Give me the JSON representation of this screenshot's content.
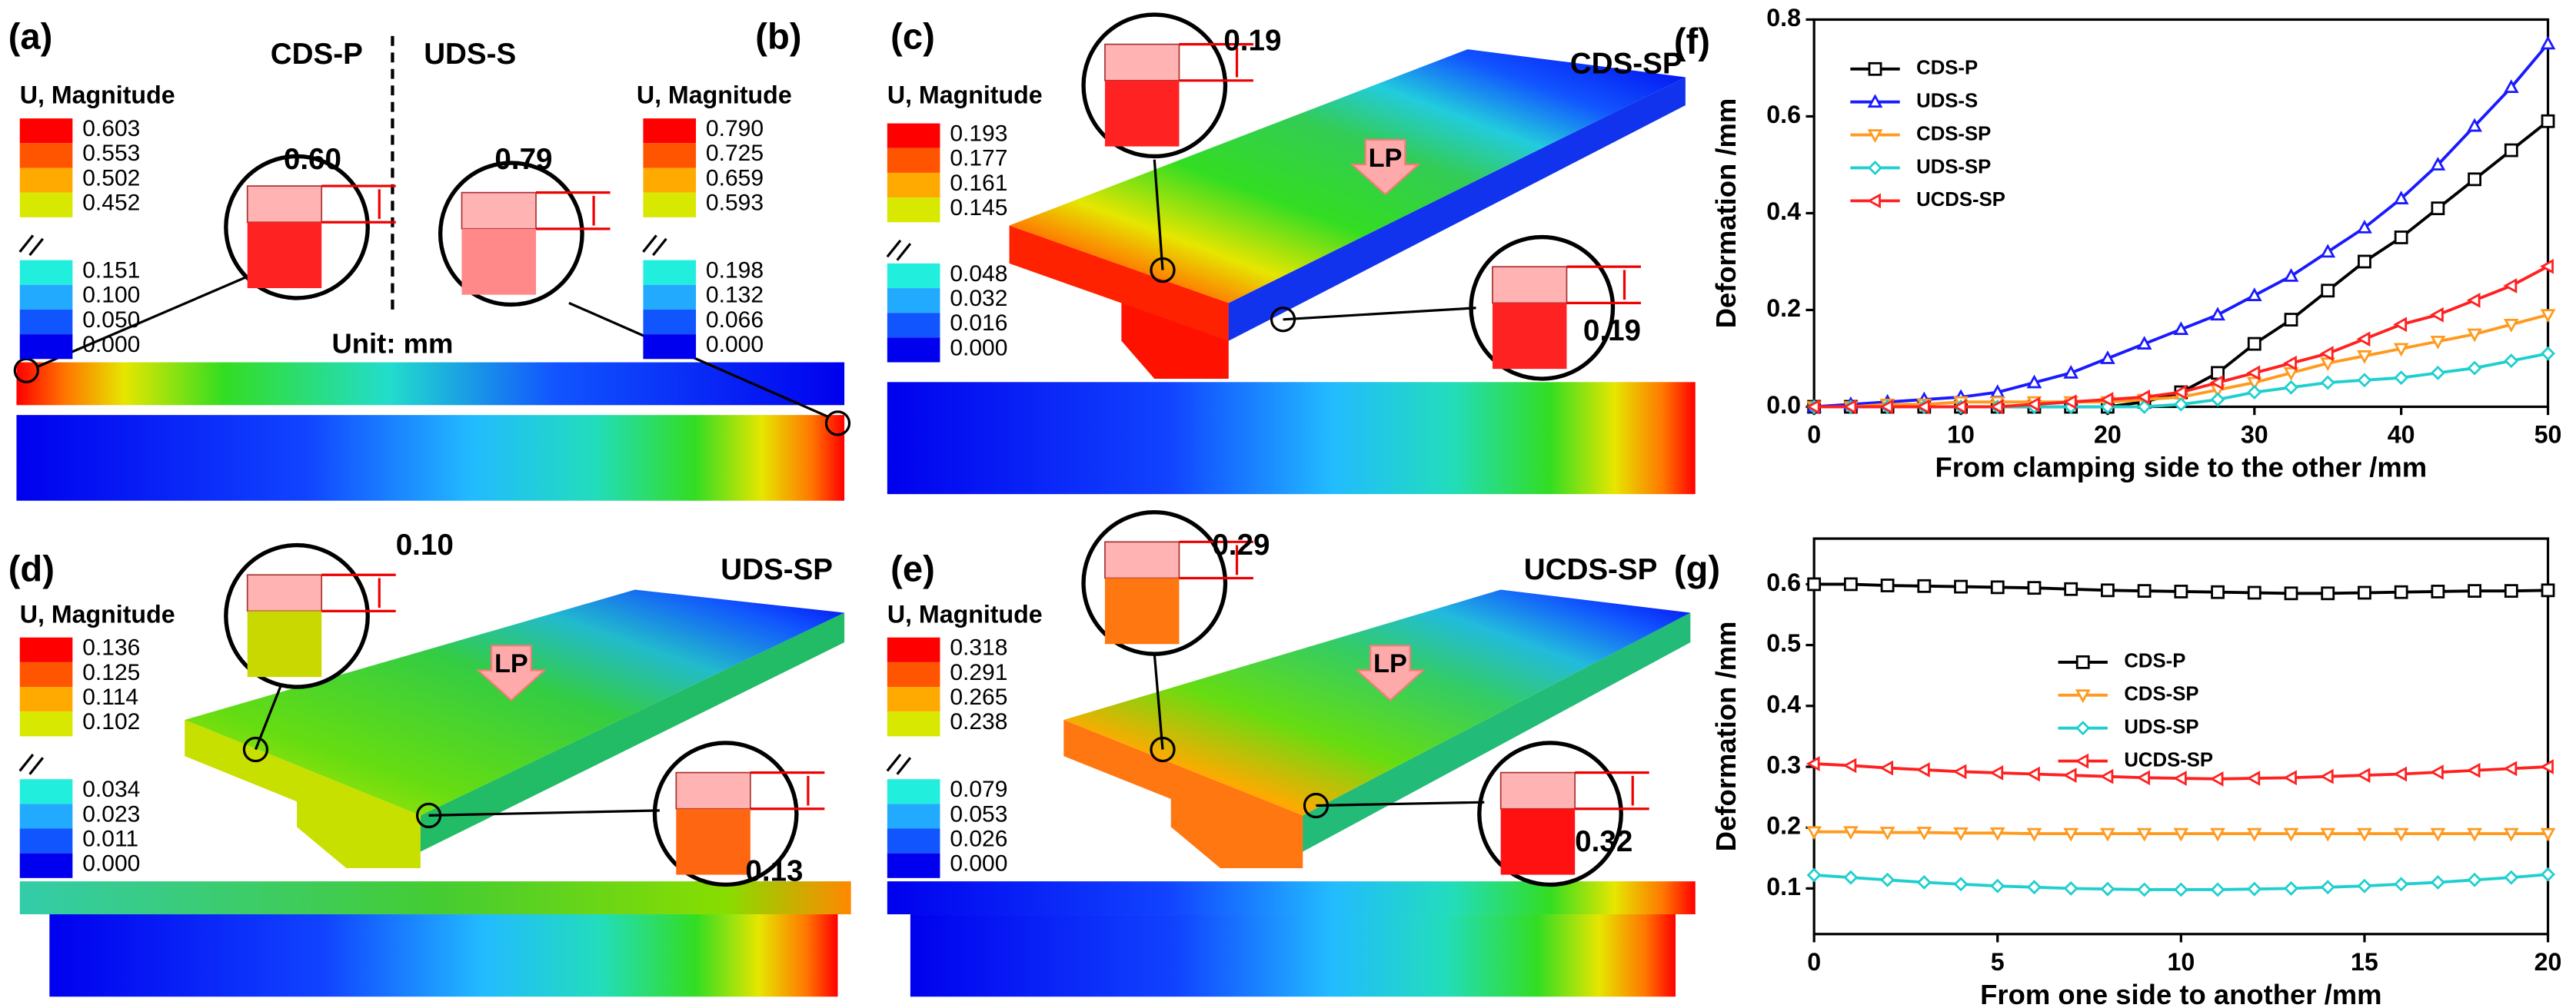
{
  "panels": [
    {
      "label": "(a)",
      "name": "CDS-P",
      "legend_title": "U, Magnitude",
      "legend_values": [
        "0.603",
        "0.553",
        "0.502",
        "0.452",
        "0.151",
        "0.100",
        "0.050",
        "0.000"
      ],
      "callouts": [
        "0.60"
      ]
    },
    {
      "label": "(b)",
      "name": "UDS-S",
      "legend_title": "U, Magnitude",
      "legend_values": [
        "0.790",
        "0.725",
        "0.659",
        "0.593",
        "0.198",
        "0.132",
        "0.066",
        "0.000"
      ],
      "callouts": [
        "0.79"
      ]
    },
    {
      "label": "(c)",
      "name": "CDS-SP",
      "legend_title": "U, Magnitude",
      "legend_values": [
        "0.193",
        "0.177",
        "0.161",
        "0.145",
        "0.048",
        "0.032",
        "0.016",
        "0.000"
      ],
      "callouts": [
        "0.19",
        "0.19"
      ],
      "load": "LP"
    },
    {
      "label": "(d)",
      "name": "UDS-SP",
      "legend_title": "U, Magnitude",
      "legend_values": [
        "0.136",
        "0.125",
        "0.114",
        "0.102",
        "0.034",
        "0.023",
        "0.011",
        "0.000"
      ],
      "callouts": [
        "0.10",
        "0.13"
      ],
      "load": "LP"
    },
    {
      "label": "(e)",
      "name": "UCDS-SP",
      "legend_title": "U, Magnitude",
      "legend_values": [
        "0.318",
        "0.291",
        "0.265",
        "0.238",
        "0.079",
        "0.053",
        "0.026",
        "0.000"
      ],
      "callouts": [
        "0.29",
        "0.32"
      ],
      "load": "LP"
    }
  ],
  "unit": "Unit: mm",
  "chart_data": [
    {
      "type": "line",
      "label": "(f)",
      "xlabel": "From clamping side to the other /mm",
      "ylabel": "Deformation /mm",
      "x": [
        0,
        2.5,
        5,
        7.5,
        10,
        12.5,
        15,
        17.5,
        20,
        22.5,
        25,
        27.5,
        30,
        32.5,
        35,
        37.5,
        40,
        42.5,
        45,
        47.5,
        50
      ],
      "xlim": [
        0,
        50
      ],
      "xticks": [
        0,
        10,
        20,
        30,
        40,
        50
      ],
      "ylim": [
        0,
        0.8
      ],
      "yticks": [
        {
          "value": 0,
          "label": "0.0"
        },
        0.2,
        0.4,
        0.6,
        0.8
      ],
      "legend": "upper left",
      "series": [
        {
          "name": "CDS-P",
          "color": "#000000",
          "marker": "square",
          "values": [
            0,
            0,
            0,
            0,
            0,
            0,
            0,
            0,
            0,
            0.01,
            0.03,
            0.07,
            0.13,
            0.18,
            0.24,
            0.3,
            0.35,
            0.41,
            0.47,
            0.53,
            0.59
          ]
        },
        {
          "name": "UDS-S",
          "color": "#1a1aff",
          "marker": "triangle-up",
          "values": [
            0,
            0.005,
            0.01,
            0.015,
            0.02,
            0.03,
            0.05,
            0.07,
            0.1,
            0.13,
            0.16,
            0.19,
            0.23,
            0.27,
            0.32,
            0.37,
            0.43,
            0.5,
            0.58,
            0.66,
            0.75
          ]
        },
        {
          "name": "CDS-SP",
          "color": "#ff9a1f",
          "marker": "triangle-down",
          "values": [
            0,
            0,
            0.005,
            0.005,
            0.01,
            0.01,
            0.01,
            0.01,
            0.01,
            0.015,
            0.02,
            0.035,
            0.05,
            0.07,
            0.09,
            0.105,
            0.12,
            0.135,
            0.15,
            0.17,
            0.19
          ]
        },
        {
          "name": "UDS-SP",
          "color": "#1fcfcf",
          "marker": "diamond",
          "values": [
            0,
            0,
            0,
            0,
            0,
            0,
            0,
            0,
            0,
            0,
            0.005,
            0.015,
            0.03,
            0.04,
            0.05,
            0.055,
            0.06,
            0.07,
            0.08,
            0.095,
            0.11
          ]
        },
        {
          "name": "UCDS-SP",
          "color": "#ff2020",
          "marker": "triangle-left",
          "values": [
            0,
            0,
            0,
            0,
            0,
            0,
            0.005,
            0.01,
            0.015,
            0.02,
            0.03,
            0.05,
            0.07,
            0.09,
            0.11,
            0.14,
            0.17,
            0.19,
            0.22,
            0.25,
            0.29
          ]
        }
      ]
    },
    {
      "type": "line",
      "label": "(g)",
      "xlabel": "From one side to another /mm",
      "ylabel": "Deformation /mm",
      "x": [
        0,
        1,
        2,
        3,
        4,
        5,
        6,
        7,
        8,
        9,
        10,
        11,
        12,
        13,
        14,
        15,
        16,
        17,
        18,
        19,
        20
      ],
      "xlim": [
        0,
        20
      ],
      "xticks": [
        0,
        5,
        10,
        15,
        20
      ],
      "ylim": [
        0.025,
        0.675
      ],
      "yticks": [
        0.1,
        0.2,
        0.3,
        0.4,
        0.5,
        0.6
      ],
      "legend": "center",
      "series": [
        {
          "name": "CDS-P",
          "color": "#000000",
          "marker": "square",
          "values": [
            0.6,
            0.6,
            0.598,
            0.597,
            0.596,
            0.595,
            0.594,
            0.592,
            0.59,
            0.589,
            0.588,
            0.587,
            0.586,
            0.585,
            0.585,
            0.586,
            0.587,
            0.588,
            0.589,
            0.589,
            0.59
          ]
        },
        {
          "name": "CDS-SP",
          "color": "#ff9a1f",
          "marker": "triangle-down",
          "values": [
            0.193,
            0.193,
            0.192,
            0.192,
            0.191,
            0.191,
            0.19,
            0.19,
            0.19,
            0.19,
            0.19,
            0.19,
            0.19,
            0.19,
            0.19,
            0.19,
            0.19,
            0.19,
            0.19,
            0.19,
            0.19
          ]
        },
        {
          "name": "UDS-SP",
          "color": "#1fcfcf",
          "marker": "diamond",
          "values": [
            0.122,
            0.118,
            0.114,
            0.11,
            0.107,
            0.104,
            0.102,
            0.1,
            0.099,
            0.098,
            0.098,
            0.098,
            0.099,
            0.1,
            0.102,
            0.104,
            0.107,
            0.11,
            0.114,
            0.118,
            0.123
          ]
        },
        {
          "name": "UCDS-SP",
          "color": "#ff2020",
          "marker": "triangle-left",
          "values": [
            0.305,
            0.302,
            0.298,
            0.295,
            0.292,
            0.29,
            0.288,
            0.286,
            0.284,
            0.282,
            0.281,
            0.28,
            0.281,
            0.282,
            0.284,
            0.286,
            0.288,
            0.291,
            0.294,
            0.297,
            0.3
          ]
        }
      ]
    }
  ]
}
